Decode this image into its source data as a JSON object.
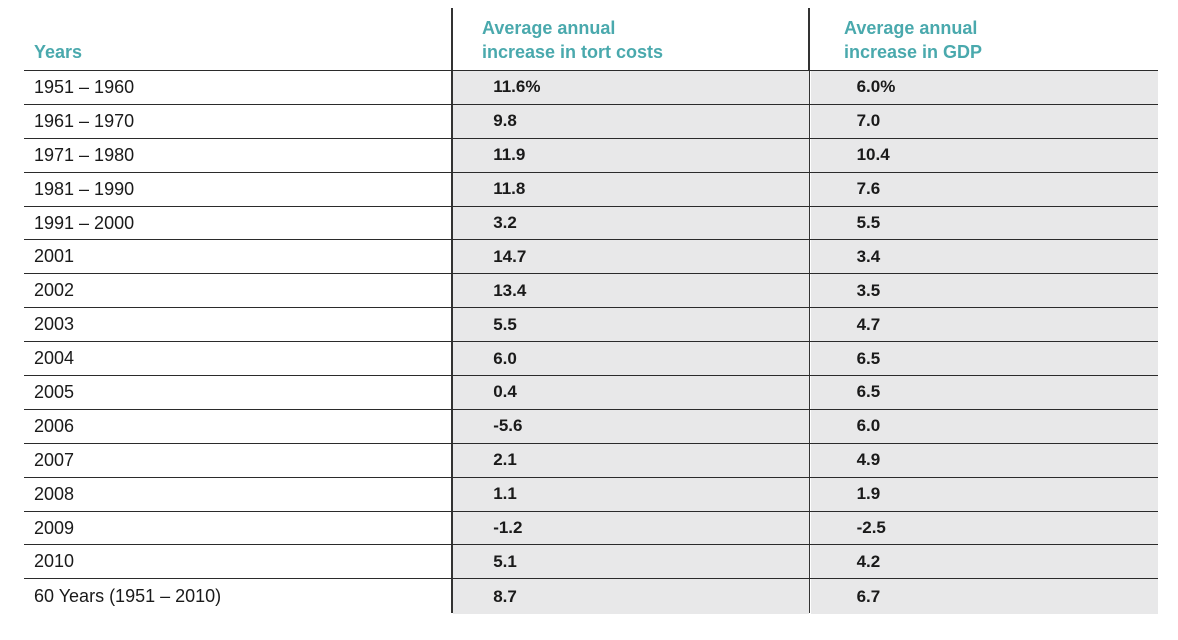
{
  "headers": {
    "years": "Years",
    "tort_line1": "Average annual",
    "tort_line2": "increase in tort costs",
    "gdp_line1": "Average annual",
    "gdp_line2": "increase in GDP"
  },
  "rows": [
    {
      "years": "1951 – 1960",
      "tort": "11.6%",
      "gdp": "6.0%"
    },
    {
      "years": "1961 – 1970",
      "tort": "9.8",
      "gdp": "7.0"
    },
    {
      "years": "1971 – 1980",
      "tort": "11.9",
      "gdp": "10.4"
    },
    {
      "years": "1981 – 1990",
      "tort": "11.8",
      "gdp": "7.6"
    },
    {
      "years": "1991 – 2000",
      "tort": "3.2",
      "gdp": "5.5"
    },
    {
      "years": "2001",
      "tort": "14.7",
      "gdp": "3.4"
    },
    {
      "years": "2002",
      "tort": "13.4",
      "gdp": "3.5"
    },
    {
      "years": "2003",
      "tort": "5.5",
      "gdp": "4.7"
    },
    {
      "years": "2004",
      "tort": "6.0",
      "gdp": "6.5"
    },
    {
      "years": "2005",
      "tort": "0.4",
      "gdp": "6.5"
    },
    {
      "years": "2006",
      "tort": "-5.6",
      "gdp": "6.0"
    },
    {
      "years": "2007",
      "tort": "2.1",
      "gdp": "4.9"
    },
    {
      "years": "2008",
      "tort": "1.1",
      "gdp": "1.9"
    },
    {
      "years": "2009",
      "tort": "-1.2",
      "gdp": "-2.5"
    },
    {
      "years": "2010",
      "tort": "5.1",
      "gdp": "4.2"
    },
    {
      "years": "60 Years (1951 – 2010)",
      "tort": "8.7",
      "gdp": "6.7"
    }
  ],
  "colors": {
    "header_text": "#4aa9ad",
    "cell_shade": "#e8e8e9",
    "rule": "#2b2b2b"
  }
}
